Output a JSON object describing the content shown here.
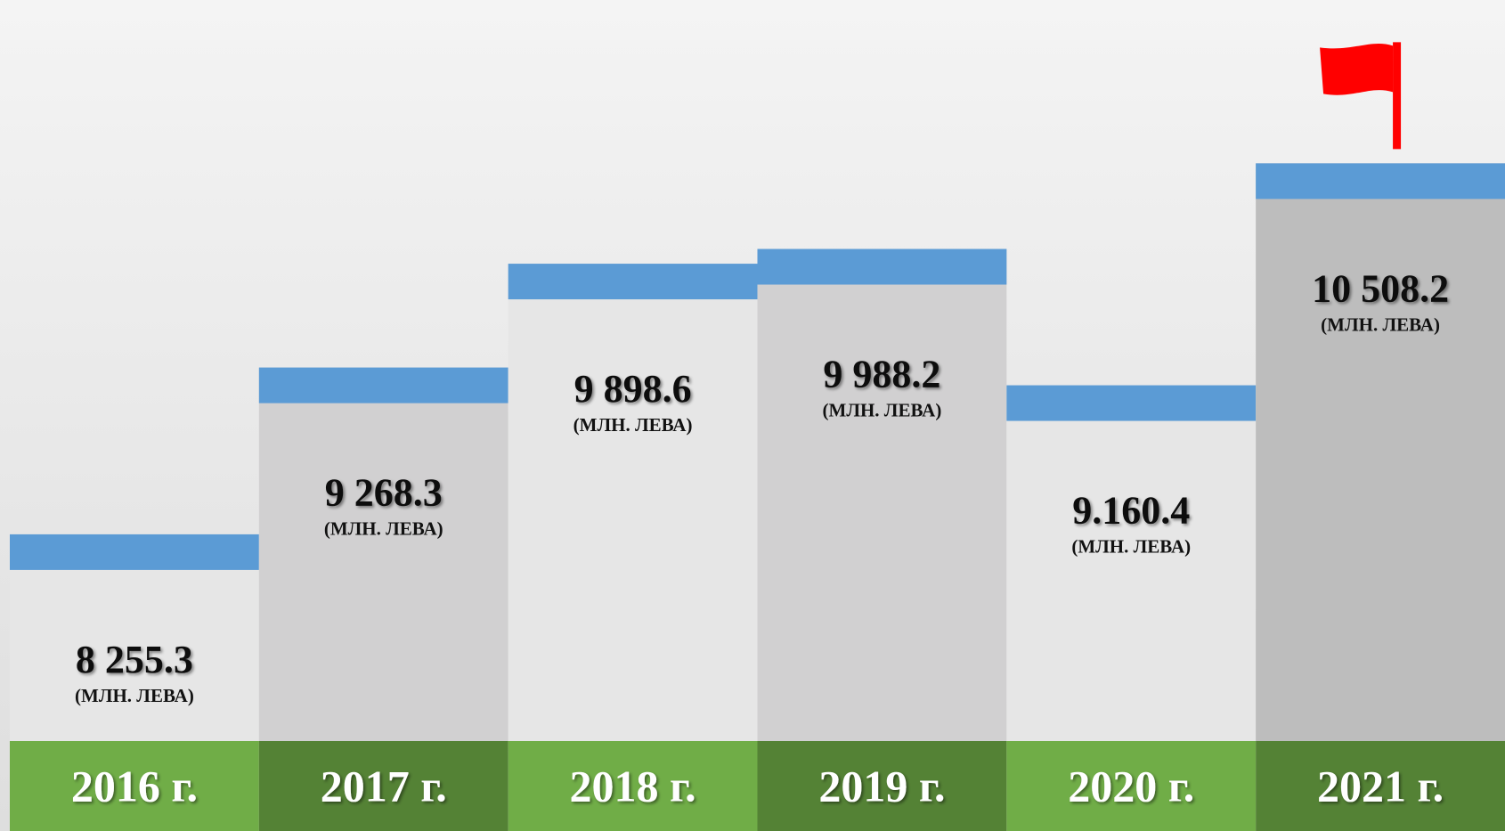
{
  "chart_data": {
    "type": "bar",
    "categories": [
      "2016 г.",
      "2017 г.",
      "2018 г.",
      "2019 г.",
      "2020 г.",
      "2021 г."
    ],
    "values": [
      8255.3,
      9268.3,
      9898.6,
      9988.2,
      9160.4,
      10508.2
    ],
    "value_labels": [
      "8 255.3",
      "9 268.3",
      "9 898.6",
      "9 988.2",
      "9.160.4",
      "10 508.2"
    ],
    "unit_label": "(МЛН. ЛЕВА)",
    "ylim": [
      7000,
      11500
    ],
    "bar_colors": [
      "#e6e6e6",
      "#d1d0d1",
      "#e6e6e6",
      "#d1d0d1",
      "#e6e6e6",
      "#bdbdbd"
    ],
    "cap_color": "#5b9bd5",
    "category_colors": [
      "#70ad47",
      "#548235",
      "#70ad47",
      "#548235",
      "#70ad47",
      "#548235"
    ]
  }
}
